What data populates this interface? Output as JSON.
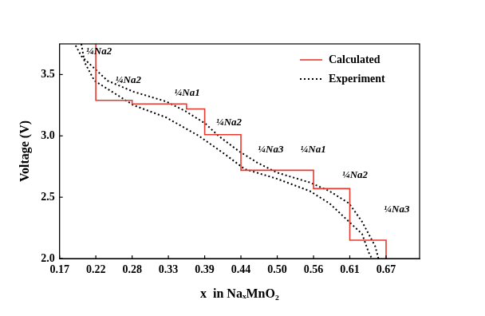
{
  "chart_data": {
    "type": "line",
    "xlabel": "x  in NaₓMnO₂",
    "ylabel": "Voltage (V)",
    "xlim": [
      0.1667,
      0.718
    ],
    "xticks": [
      {
        "value": 0.1667,
        "label": "0.17"
      },
      {
        "value": 0.2222,
        "label": "0.22"
      },
      {
        "value": 0.2778,
        "label": "0.28"
      },
      {
        "value": 0.3333,
        "label": "0.33"
      },
      {
        "value": 0.3889,
        "label": "0.39"
      },
      {
        "value": 0.4444,
        "label": "0.44"
      },
      {
        "value": 0.5,
        "label": "0.50"
      },
      {
        "value": 0.5556,
        "label": "0.56"
      },
      {
        "value": 0.6111,
        "label": "0.61"
      },
      {
        "value": 0.6667,
        "label": "0.67"
      }
    ],
    "ylim": [
      2.0,
      3.75
    ],
    "yticks": [
      {
        "value": 2.0,
        "label": "2.0"
      },
      {
        "value": 2.5,
        "label": "2.5"
      },
      {
        "value": 3.0,
        "label": "3.0"
      },
      {
        "value": 3.5,
        "label": "3.5"
      }
    ],
    "grid": false,
    "legend": "upper right",
    "series": [
      {
        "name": "Calculated",
        "color": "#e8392f",
        "line_style": "solid",
        "x": [
          0.2222,
          0.2222,
          0.2778,
          0.2778,
          0.3611,
          0.3611,
          0.3889,
          0.3889,
          0.4444,
          0.4444,
          0.5556,
          0.5556,
          0.6111,
          0.6111,
          0.6667,
          0.6667
        ],
        "values": [
          3.75,
          3.29,
          3.29,
          3.26,
          3.26,
          3.22,
          3.22,
          3.01,
          3.01,
          2.72,
          2.72,
          2.57,
          2.57,
          2.15,
          2.15,
          2.0
        ]
      },
      {
        "name": "Experiment",
        "color": "#000000",
        "line_style": "dotted",
        "x": [
          0.655,
          0.65,
          0.63,
          0.61,
          0.58,
          0.55,
          0.5,
          0.47,
          0.44,
          0.41,
          0.39,
          0.36,
          0.33,
          0.28,
          0.24,
          0.22,
          0.2,
          0.19,
          null,
          0.2,
          0.205,
          0.22,
          0.25,
          0.28,
          0.33,
          0.38,
          0.42,
          0.45,
          0.5,
          0.55,
          0.58,
          0.61,
          0.63,
          0.64,
          0.645
        ],
        "values": [
          2.0,
          2.1,
          2.3,
          2.45,
          2.55,
          2.62,
          2.7,
          2.78,
          2.88,
          3.0,
          3.1,
          3.2,
          3.28,
          3.36,
          3.45,
          3.55,
          3.65,
          3.75,
          null,
          3.75,
          3.6,
          3.45,
          3.35,
          3.25,
          3.15,
          3.0,
          2.85,
          2.73,
          2.65,
          2.55,
          2.45,
          2.3,
          2.2,
          2.05,
          2.0
        ]
      }
    ],
    "annotations": [
      {
        "text": "¼Na2",
        "x": 0.227,
        "y": 3.69
      },
      {
        "text": "¼Na2",
        "x": 0.272,
        "y": 3.45
      },
      {
        "text": "¼Na1",
        "x": 0.362,
        "y": 3.35
      },
      {
        "text": "¼Na2",
        "x": 0.426,
        "y": 3.11
      },
      {
        "text": "¼Na3",
        "x": 0.49,
        "y": 2.89
      },
      {
        "text": "¼Na1",
        "x": 0.555,
        "y": 2.89
      },
      {
        "text": "¼Na2",
        "x": 0.619,
        "y": 2.68
      },
      {
        "text": "¼Na3",
        "x": 0.683,
        "y": 2.4
      }
    ]
  }
}
